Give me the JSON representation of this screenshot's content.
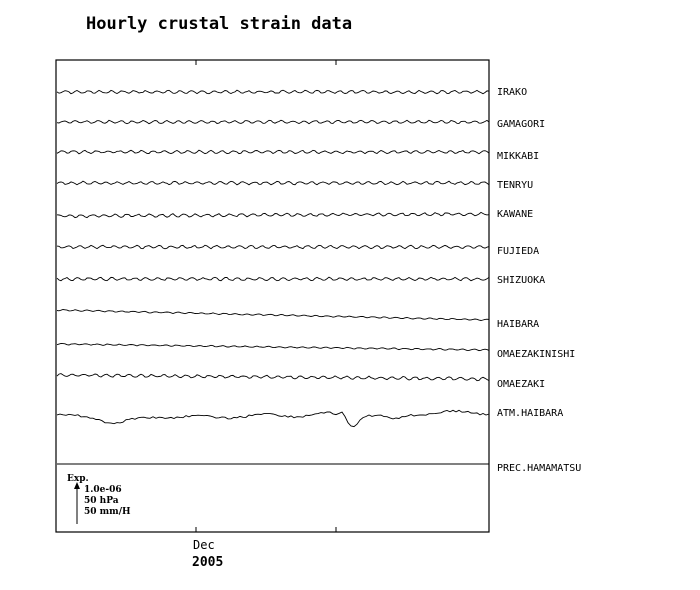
{
  "chart_data": {
    "type": "line",
    "title": "Hourly crustal strain data",
    "x_tick_month": "Dec",
    "x_tick_year": "2005",
    "series": [
      {
        "name": "IRAKO",
        "style": "wavy",
        "drift": 0.0
      },
      {
        "name": "GAMAGORI",
        "style": "wavy",
        "drift": 0.0
      },
      {
        "name": "MIKKABI",
        "style": "wavy",
        "drift": 0.0
      },
      {
        "name": "TENRYU",
        "style": "wavy",
        "drift": 0.0
      },
      {
        "name": "KAWANE",
        "style": "wavy",
        "drift": -0.05
      },
      {
        "name": "FUJIEDA",
        "style": "wavy",
        "drift": 0.0
      },
      {
        "name": "SHIZUOKA",
        "style": "wavy",
        "drift": 0.0
      },
      {
        "name": "HAIBARA",
        "style": "drift",
        "drift": 0.25
      },
      {
        "name": "OMAEZAKINISHI",
        "style": "drift",
        "drift": 0.15
      },
      {
        "name": "OMAEZAKI",
        "style": "wavy",
        "drift": 0.1
      },
      {
        "name": "ATM.HAIBARA",
        "style": "pressure",
        "drift": 0.0
      },
      {
        "name": "PREC.HAMAMATSU",
        "style": "flat",
        "drift": 0.0
      }
    ],
    "legend": {
      "label": "Exp.",
      "scales": [
        "1.0e-06",
        "50 hPa",
        "50 mm/H"
      ]
    },
    "grid": false
  }
}
